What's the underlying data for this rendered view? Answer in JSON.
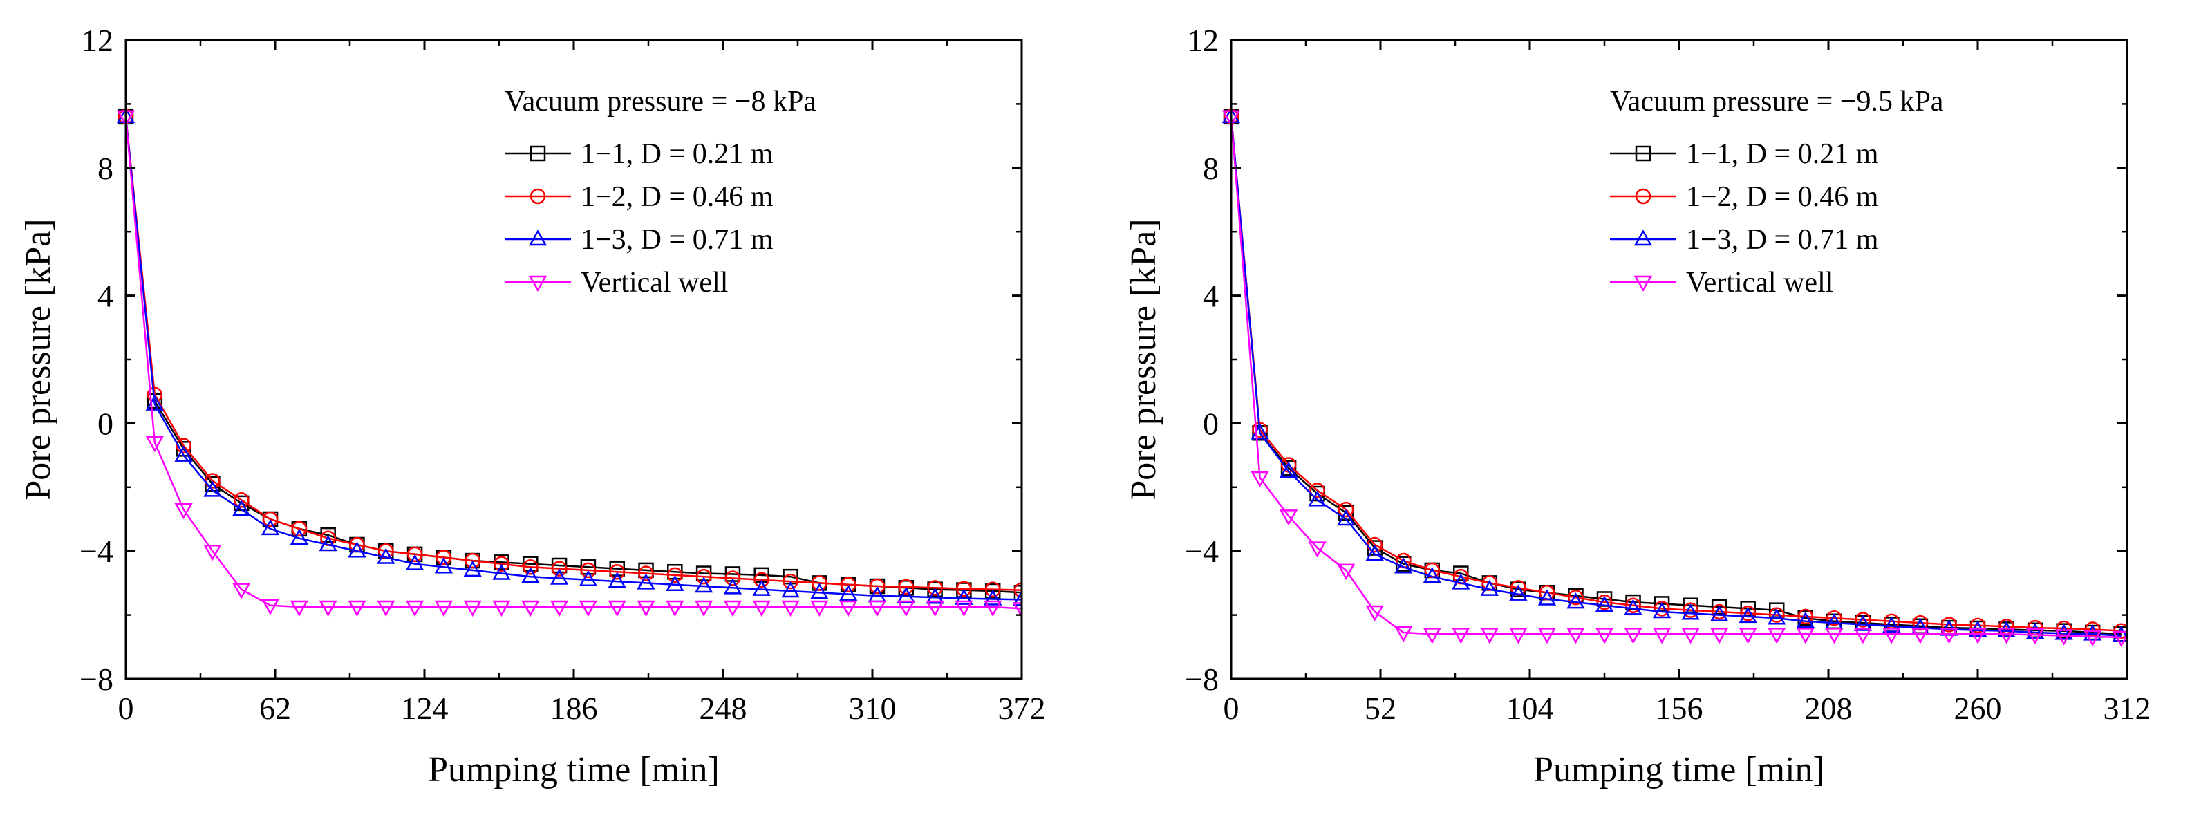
{
  "chart_data": [
    {
      "type": "line",
      "title": "",
      "xlabel": "Pumping time [min]",
      "ylabel": "Pore pressure [kPa]",
      "xlim": [
        0,
        372
      ],
      "ylim": [
        -8,
        12
      ],
      "xticks": [
        0,
        62,
        124,
        186,
        248,
        310,
        372
      ],
      "xtick_labels": [
        "0",
        "62",
        "124",
        "186",
        "248",
        "310",
        "372"
      ],
      "yticks": [
        -8,
        -4,
        0,
        4,
        8,
        12
      ],
      "ytick_labels": [
        "−8",
        "−4",
        "0",
        "4",
        "8",
        "12"
      ],
      "legend_title": "Vacuum pressure = −8 kPa",
      "legend_position": "top-right",
      "grid": false,
      "series": [
        {
          "name": "1−1, D = 0.21 m",
          "color": "#000000",
          "marker": "square",
          "x": [
            0,
            12,
            24,
            36,
            48,
            60,
            72,
            84,
            96,
            108,
            120,
            132,
            144,
            156,
            168,
            180,
            192,
            204,
            216,
            228,
            240,
            252,
            264,
            276,
            288,
            300,
            312,
            324,
            336,
            348,
            360,
            372
          ],
          "y": [
            9.6,
            0.7,
            -0.8,
            -1.9,
            -2.5,
            -3.0,
            -3.3,
            -3.5,
            -3.8,
            -4.0,
            -4.1,
            -4.2,
            -4.3,
            -4.35,
            -4.4,
            -4.45,
            -4.5,
            -4.55,
            -4.6,
            -4.65,
            -4.7,
            -4.72,
            -4.75,
            -4.8,
            -5.0,
            -5.05,
            -5.1,
            -5.15,
            -5.2,
            -5.22,
            -5.25,
            -5.3
          ]
        },
        {
          "name": "1−2, D = 0.46 m",
          "color": "#ff0000",
          "marker": "circle",
          "x": [
            0,
            12,
            24,
            36,
            48,
            60,
            72,
            84,
            96,
            108,
            120,
            132,
            144,
            156,
            168,
            180,
            192,
            204,
            216,
            228,
            240,
            252,
            264,
            276,
            288,
            300,
            312,
            324,
            336,
            348,
            360,
            372
          ],
          "y": [
            9.6,
            0.9,
            -0.7,
            -1.8,
            -2.4,
            -3.0,
            -3.3,
            -3.6,
            -3.8,
            -4.0,
            -4.1,
            -4.2,
            -4.3,
            -4.4,
            -4.5,
            -4.55,
            -4.6,
            -4.65,
            -4.7,
            -4.75,
            -4.8,
            -4.85,
            -4.9,
            -4.95,
            -5.0,
            -5.05,
            -5.1,
            -5.12,
            -5.15,
            -5.18,
            -5.2,
            -5.22
          ]
        },
        {
          "name": "1−3, D = 0.71 m",
          "color": "#0000ff",
          "marker": "triangle-up",
          "x": [
            0,
            12,
            24,
            36,
            48,
            60,
            72,
            84,
            96,
            108,
            120,
            132,
            144,
            156,
            168,
            180,
            192,
            204,
            216,
            228,
            240,
            252,
            264,
            276,
            288,
            300,
            312,
            324,
            336,
            348,
            360,
            372
          ],
          "y": [
            9.6,
            0.6,
            -1.0,
            -2.1,
            -2.7,
            -3.3,
            -3.6,
            -3.8,
            -4.0,
            -4.2,
            -4.4,
            -4.5,
            -4.6,
            -4.7,
            -4.8,
            -4.85,
            -4.9,
            -4.95,
            -5.0,
            -5.05,
            -5.1,
            -5.15,
            -5.2,
            -5.25,
            -5.3,
            -5.35,
            -5.4,
            -5.42,
            -5.45,
            -5.48,
            -5.5,
            -5.52
          ]
        },
        {
          "name": "Vertical well",
          "color": "#ff00ff",
          "marker": "triangle-down",
          "x": [
            0,
            12,
            24,
            36,
            48,
            60,
            72,
            84,
            96,
            108,
            120,
            132,
            144,
            156,
            168,
            180,
            192,
            204,
            216,
            228,
            240,
            252,
            264,
            276,
            288,
            300,
            312,
            324,
            336,
            348,
            360,
            372
          ],
          "y": [
            9.6,
            -0.6,
            -2.7,
            -4.0,
            -5.2,
            -5.7,
            -5.75,
            -5.75,
            -5.75,
            -5.75,
            -5.75,
            -5.75,
            -5.75,
            -5.75,
            -5.75,
            -5.75,
            -5.75,
            -5.75,
            -5.75,
            -5.75,
            -5.75,
            -5.75,
            -5.75,
            -5.75,
            -5.75,
            -5.75,
            -5.75,
            -5.75,
            -5.75,
            -5.75,
            -5.75,
            -5.8
          ]
        }
      ]
    },
    {
      "type": "line",
      "title": "",
      "xlabel": "Pumping time [min]",
      "ylabel": "Pore pressure [kPa]",
      "xlim": [
        0,
        312
      ],
      "ylim": [
        -8,
        12
      ],
      "xticks": [
        0,
        52,
        104,
        156,
        208,
        260,
        312
      ],
      "xtick_labels": [
        "0",
        "52",
        "104",
        "156",
        "208",
        "260",
        "312"
      ],
      "yticks": [
        -8,
        -4,
        0,
        4,
        8,
        12
      ],
      "ytick_labels": [
        "−8",
        "−4",
        "0",
        "4",
        "8",
        "12"
      ],
      "legend_title": "Vacuum pressure = −9.5 kPa",
      "legend_position": "top-right",
      "grid": false,
      "series": [
        {
          "name": "1−1, D = 0.21 m",
          "color": "#000000",
          "marker": "square",
          "x": [
            0,
            10,
            20,
            30,
            40,
            50,
            60,
            70,
            80,
            90,
            100,
            110,
            120,
            130,
            140,
            150,
            160,
            170,
            180,
            190,
            200,
            210,
            220,
            230,
            240,
            250,
            260,
            270,
            280,
            290,
            300,
            310
          ],
          "y": [
            9.6,
            -0.3,
            -1.4,
            -2.2,
            -2.8,
            -3.9,
            -4.4,
            -4.6,
            -4.7,
            -5.0,
            -5.2,
            -5.3,
            -5.4,
            -5.5,
            -5.6,
            -5.65,
            -5.7,
            -5.75,
            -5.8,
            -5.85,
            -6.1,
            -6.2,
            -6.25,
            -6.3,
            -6.35,
            -6.4,
            -6.42,
            -6.45,
            -6.48,
            -6.5,
            -6.55,
            -6.6
          ]
        },
        {
          "name": "1−2, D = 0.46 m",
          "color": "#ff0000",
          "marker": "circle",
          "x": [
            0,
            10,
            20,
            30,
            40,
            50,
            60,
            70,
            80,
            90,
            100,
            110,
            120,
            130,
            140,
            150,
            160,
            170,
            180,
            190,
            200,
            210,
            220,
            230,
            240,
            250,
            260,
            270,
            280,
            290,
            300,
            310
          ],
          "y": [
            9.6,
            -0.2,
            -1.3,
            -2.1,
            -2.7,
            -3.8,
            -4.3,
            -4.6,
            -4.8,
            -5.0,
            -5.15,
            -5.3,
            -5.45,
            -5.6,
            -5.7,
            -5.8,
            -5.85,
            -5.9,
            -5.95,
            -6.0,
            -6.05,
            -6.1,
            -6.15,
            -6.2,
            -6.25,
            -6.3,
            -6.33,
            -6.36,
            -6.4,
            -6.42,
            -6.45,
            -6.5
          ]
        },
        {
          "name": "1−3, D = 0.71 m",
          "color": "#0000ff",
          "marker": "triangle-up",
          "x": [
            0,
            10,
            20,
            30,
            40,
            50,
            60,
            70,
            80,
            90,
            100,
            110,
            120,
            130,
            140,
            150,
            160,
            170,
            180,
            190,
            200,
            210,
            220,
            230,
            240,
            250,
            260,
            270,
            280,
            290,
            300,
            310
          ],
          "y": [
            9.6,
            -0.3,
            -1.5,
            -2.4,
            -3.0,
            -4.1,
            -4.5,
            -4.8,
            -5.0,
            -5.2,
            -5.35,
            -5.5,
            -5.6,
            -5.7,
            -5.8,
            -5.9,
            -5.95,
            -6.0,
            -6.05,
            -6.1,
            -6.2,
            -6.25,
            -6.3,
            -6.35,
            -6.4,
            -6.45,
            -6.48,
            -6.5,
            -6.55,
            -6.58,
            -6.6,
            -6.65
          ]
        },
        {
          "name": "Vertical well",
          "color": "#ff00ff",
          "marker": "triangle-down",
          "x": [
            0,
            10,
            20,
            30,
            40,
            50,
            60,
            70,
            80,
            90,
            100,
            110,
            120,
            130,
            140,
            150,
            160,
            170,
            180,
            190,
            200,
            210,
            220,
            230,
            240,
            250,
            260,
            270,
            280,
            290,
            300,
            310
          ],
          "y": [
            9.6,
            -1.7,
            -2.9,
            -3.9,
            -4.6,
            -5.9,
            -6.55,
            -6.6,
            -6.6,
            -6.6,
            -6.6,
            -6.6,
            -6.6,
            -6.6,
            -6.6,
            -6.6,
            -6.6,
            -6.6,
            -6.6,
            -6.6,
            -6.6,
            -6.6,
            -6.6,
            -6.6,
            -6.6,
            -6.6,
            -6.6,
            -6.6,
            -6.62,
            -6.65,
            -6.68,
            -6.7
          ]
        }
      ]
    }
  ]
}
